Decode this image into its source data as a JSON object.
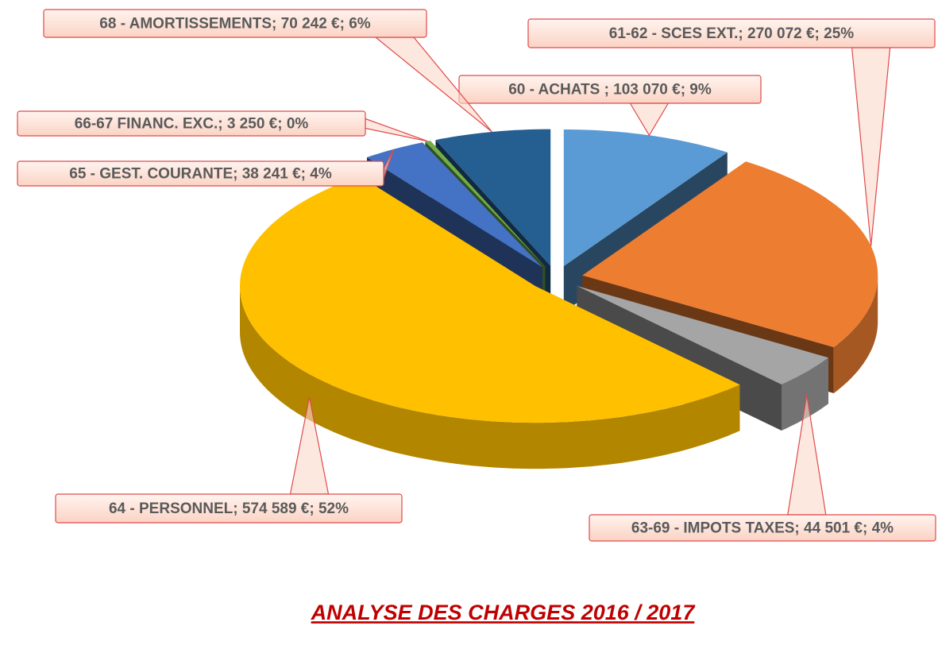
{
  "chart_data": {
    "type": "pie",
    "title": "ANALYSE DES CHARGES 2016 / 2017",
    "categories": [
      "60 - ACHATS ; 103 070 €; 9%",
      "61-62 - SCES EXT.; 270 072 €; 25%",
      "63-69 - IMPOTS TAXES; 44 501 €; 4%",
      "64 - PERSONNEL; 574 589 €; 52%",
      "65 - GEST. COURANTE; 38 241 €; 4%",
      "66-67  FINANC. EXC.; 3 250 €; 0%",
      "68 - AMORTISSEMENTS; 70 242 €; 6%"
    ],
    "values": [
      103070,
      270072,
      44501,
      574589,
      38241,
      3250,
      70242
    ],
    "colors": [
      "#5b9bd5",
      "#ed7d31",
      "#a5a5a5",
      "#ffc000",
      "#4472c4",
      "#70ad47",
      "#255e91"
    ]
  }
}
